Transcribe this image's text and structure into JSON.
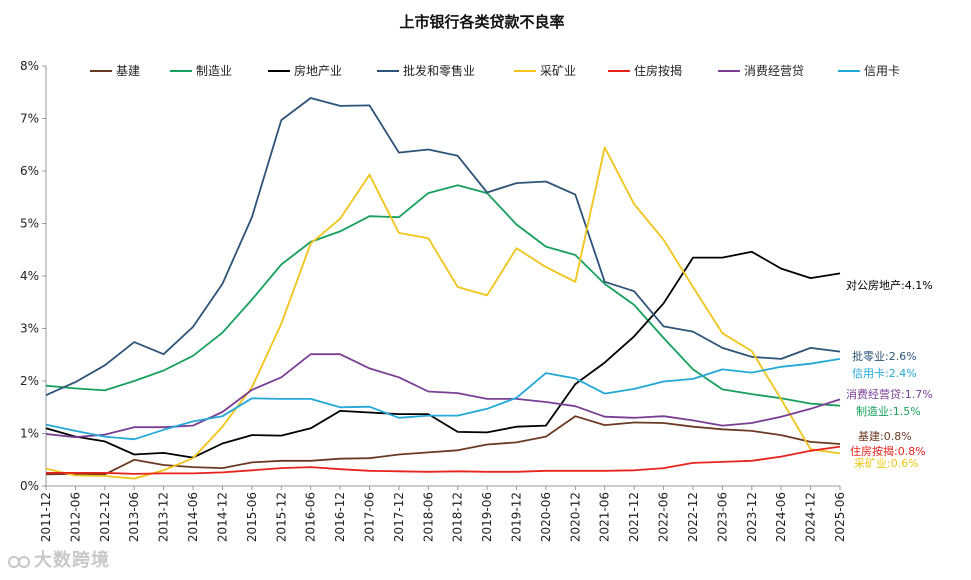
{
  "chart_data": {
    "type": "line",
    "title": "上市银行各类贷款不良率",
    "xlabel": "",
    "ylabel": "",
    "ylim": [
      0,
      8
    ],
    "yticks": [
      "0%",
      "1%",
      "2%",
      "3%",
      "4%",
      "5%",
      "6%",
      "7%",
      "8%"
    ],
    "grid": false,
    "legend_position": "top",
    "categories": [
      "2011-12",
      "2012-06",
      "2012-12",
      "2013-06",
      "2013-12",
      "2014-06",
      "2014-12",
      "2015-06",
      "2015-12",
      "2016-06",
      "2016-12",
      "2017-06",
      "2017-12",
      "2018-06",
      "2018-12",
      "2019-06",
      "2019-12",
      "2020-06",
      "2020-12",
      "2021-06",
      "2021-12",
      "2022-06",
      "2022-12",
      "2023-06",
      "2023-12",
      "2024-06",
      "2024-12",
      "2025-06"
    ],
    "series": [
      {
        "name": "基建",
        "color": "#6b3a25",
        "values": [
          0.22,
          0.23,
          0.22,
          0.5,
          0.4,
          0.36,
          0.34,
          0.45,
          0.48,
          0.48,
          0.52,
          0.53,
          0.6,
          0.64,
          0.68,
          0.79,
          0.83,
          0.94,
          1.33,
          1.16,
          1.21,
          1.2,
          1.13,
          1.08,
          1.05,
          0.97,
          0.84,
          0.8
        ]
      },
      {
        "name": "制造业",
        "color": "#17a05d",
        "values": [
          1.91,
          1.86,
          1.82,
          2.0,
          2.2,
          2.48,
          2.92,
          3.55,
          4.22,
          4.65,
          4.85,
          5.14,
          5.12,
          5.58,
          5.73,
          5.58,
          4.98,
          4.56,
          4.4,
          3.85,
          3.45,
          2.82,
          2.22,
          1.84,
          1.75,
          1.67,
          1.57,
          1.53
        ]
      },
      {
        "name": "房地产业",
        "color": "#000000",
        "values": [
          1.1,
          0.94,
          0.85,
          0.6,
          0.63,
          0.54,
          0.81,
          0.97,
          0.96,
          1.1,
          1.43,
          1.4,
          1.37,
          1.37,
          1.03,
          1.02,
          1.13,
          1.15,
          1.94,
          2.35,
          2.85,
          3.48,
          4.35,
          4.35,
          4.46,
          4.14,
          3.96,
          4.05
        ]
      },
      {
        "name": "批发和零售业",
        "color": "#2d5478",
        "values": [
          1.73,
          1.98,
          2.3,
          2.74,
          2.51,
          3.03,
          3.85,
          5.12,
          6.97,
          7.39,
          7.24,
          7.25,
          6.35,
          6.41,
          6.29,
          5.59,
          5.77,
          5.8,
          5.55,
          3.89,
          3.71,
          3.04,
          2.94,
          2.63,
          2.46,
          2.42,
          2.63,
          2.56
        ]
      },
      {
        "name": "采矿业",
        "color": "#f0c419",
        "values": [
          0.33,
          0.2,
          0.19,
          0.14,
          0.3,
          0.53,
          1.13,
          1.88,
          3.09,
          4.62,
          5.09,
          5.93,
          4.82,
          4.72,
          3.79,
          3.63,
          4.53,
          4.17,
          3.89,
          6.45,
          5.37,
          4.69,
          3.79,
          2.91,
          2.57,
          1.65,
          0.7,
          0.62
        ]
      },
      {
        "name": "住房按揭",
        "color": "#e8231c",
        "values": [
          0.25,
          0.25,
          0.25,
          0.23,
          0.24,
          0.24,
          0.26,
          0.3,
          0.34,
          0.36,
          0.32,
          0.29,
          0.28,
          0.27,
          0.28,
          0.27,
          0.27,
          0.29,
          0.29,
          0.29,
          0.3,
          0.34,
          0.44,
          0.46,
          0.48,
          0.56,
          0.67,
          0.75
        ]
      },
      {
        "name": "消费经营贷",
        "color": "#7a3f94",
        "values": [
          0.99,
          0.93,
          0.98,
          1.12,
          1.12,
          1.15,
          1.41,
          1.83,
          2.07,
          2.51,
          2.51,
          2.24,
          2.07,
          1.8,
          1.77,
          1.66,
          1.66,
          1.6,
          1.52,
          1.32,
          1.3,
          1.33,
          1.25,
          1.15,
          1.2,
          1.32,
          1.47,
          1.65
        ]
      },
      {
        "name": "信用卡",
        "color": "#23a8d8",
        "values": [
          1.17,
          1.05,
          0.94,
          0.89,
          1.07,
          1.23,
          1.33,
          1.67,
          1.66,
          1.66,
          1.5,
          1.51,
          1.3,
          1.34,
          1.34,
          1.47,
          1.68,
          2.15,
          2.05,
          1.76,
          1.85,
          1.99,
          2.04,
          2.22,
          2.16,
          2.27,
          2.33,
          2.42
        ]
      }
    ],
    "end_labels": [
      {
        "series": "房地产业",
        "text": "对公房地产:4.1%",
        "color": "#000000"
      },
      {
        "series": "批发和零售业",
        "text": "批零业:2.6%",
        "color": "#2d5478"
      },
      {
        "series": "信用卡",
        "text": "信用卡:2.4%",
        "color": "#23a8d8"
      },
      {
        "series": "消费经营贷",
        "text": "消费经营贷:1.7%",
        "color": "#7a3f94"
      },
      {
        "series": "制造业",
        "text": "制造业:1.5%",
        "color": "#17a05d"
      },
      {
        "series": "基建",
        "text": "基建:0.8%",
        "color": "#6b3a25"
      },
      {
        "series": "住房按揭",
        "text": "住房按揭:0.8%",
        "color": "#e8231c"
      },
      {
        "series": "采矿业",
        "text": "采矿业:0.6%",
        "color": "#f0c419"
      }
    ]
  },
  "watermark": {
    "text": "大数跨境"
  }
}
